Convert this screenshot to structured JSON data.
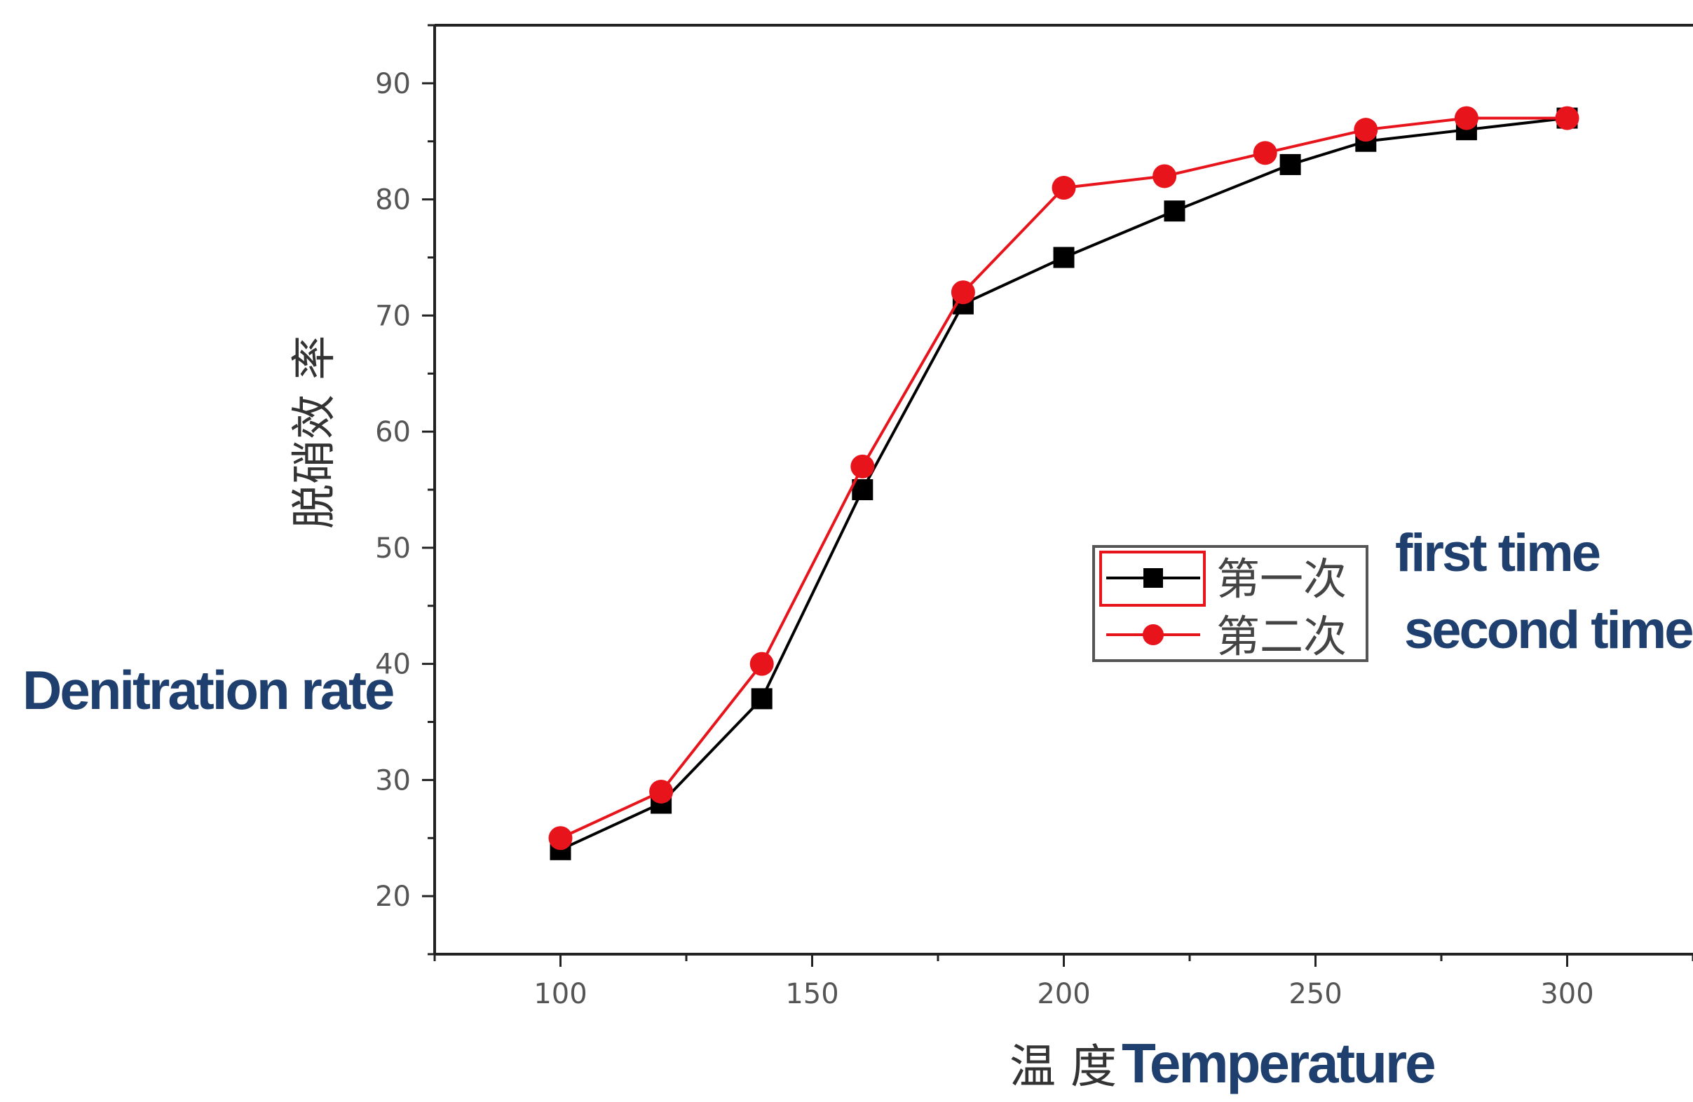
{
  "chart_data": {
    "type": "line",
    "title": "",
    "ylabel": "脱硝效 率",
    "ylabel_en": "Denitration rate",
    "xlabel": "温 度",
    "xlabel_en": "Temperature",
    "xlim": [
      75,
      325
    ],
    "ylim": [
      15,
      95
    ],
    "xticks": [
      100,
      150,
      200,
      250,
      300
    ],
    "yticks": [
      20,
      30,
      40,
      50,
      60,
      70,
      80,
      90
    ],
    "grid": false,
    "legend_position": "center-right",
    "series": [
      {
        "name": "第一次",
        "name_en": "first time",
        "color": "#000000",
        "marker": "square",
        "x": [
          100,
          120,
          140,
          160,
          180,
          200,
          222,
          245,
          260,
          280,
          300
        ],
        "y": [
          24,
          28,
          37,
          55,
          71,
          75,
          79,
          83,
          85,
          86,
          87
        ]
      },
      {
        "name": "第二次",
        "name_en": "second time",
        "color": "#e8141c",
        "marker": "circle",
        "x": [
          100,
          120,
          140,
          160,
          180,
          200,
          220,
          240,
          260,
          280,
          300
        ],
        "y": [
          25,
          29,
          40,
          57,
          72,
          81,
          82,
          84,
          86,
          87,
          87
        ]
      }
    ]
  }
}
